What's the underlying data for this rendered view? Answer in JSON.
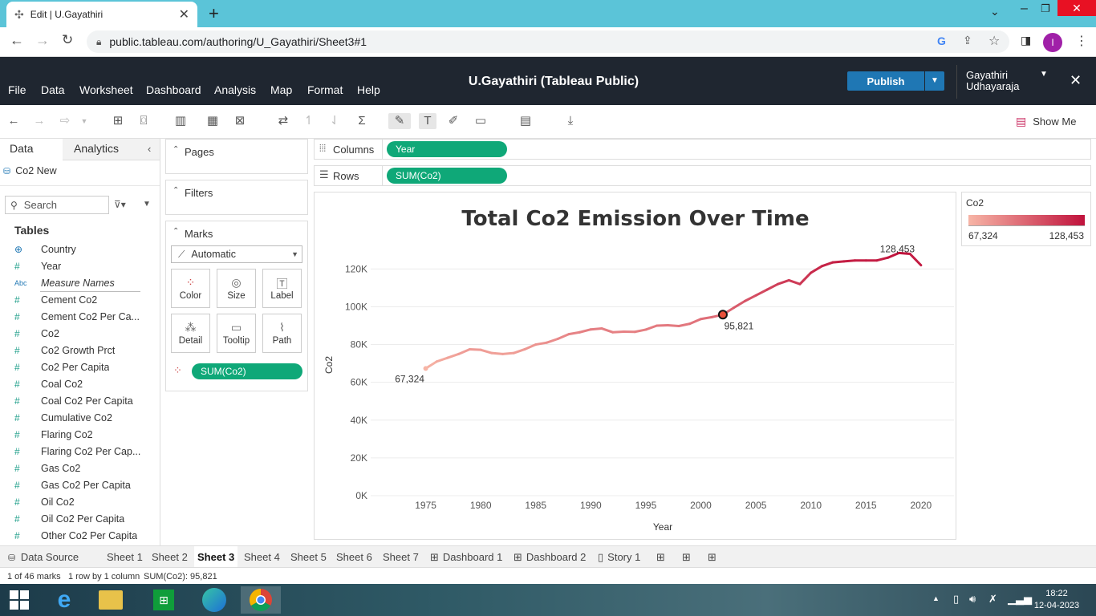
{
  "browser": {
    "tab_title": "Edit | U.Gayathiri",
    "url": "public.tableau.com/authoring/U_Gayathiri/Sheet3#1",
    "profile_initial": "I"
  },
  "app": {
    "menu": [
      "File",
      "Data",
      "Worksheet",
      "Dashboard",
      "Analysis",
      "Map",
      "Format",
      "Help"
    ],
    "workbook_title": "U.Gayathiri (Tableau Public)",
    "publish_label": "Publish",
    "user_name_line1": "Gayathiri",
    "user_name_line2": "Udhayaraja",
    "show_me_label": "Show Me"
  },
  "data_pane": {
    "tab_data": "Data",
    "tab_analytics": "Analytics",
    "datasource": "Co2 New",
    "search_placeholder": "Search",
    "tables_header": "Tables",
    "fields": [
      {
        "type": "geo",
        "name": "Country"
      },
      {
        "type": "measure",
        "name": "Year"
      },
      {
        "type": "text",
        "name": "Measure Names"
      },
      {
        "type": "measure",
        "name": "Cement Co2"
      },
      {
        "type": "measure",
        "name": "Cement Co2 Per Ca..."
      },
      {
        "type": "measure",
        "name": "Co2"
      },
      {
        "type": "measure",
        "name": "Co2 Growth Prct"
      },
      {
        "type": "measure",
        "name": "Co2 Per Capita"
      },
      {
        "type": "measure",
        "name": "Coal Co2"
      },
      {
        "type": "measure",
        "name": "Coal Co2 Per Capita"
      },
      {
        "type": "measure",
        "name": "Cumulative Co2"
      },
      {
        "type": "measure",
        "name": "Flaring Co2"
      },
      {
        "type": "measure",
        "name": "Flaring Co2 Per Cap..."
      },
      {
        "type": "measure",
        "name": "Gas Co2"
      },
      {
        "type": "measure",
        "name": "Gas Co2 Per Capita"
      },
      {
        "type": "measure",
        "name": "Oil Co2"
      },
      {
        "type": "measure",
        "name": "Oil Co2 Per Capita"
      },
      {
        "type": "measure",
        "name": "Other Co2 Per Capita"
      }
    ]
  },
  "shelves": {
    "pages_label": "Pages",
    "filters_label": "Filters",
    "marks_label": "Marks",
    "mark_type": "Automatic",
    "mark_buttons": [
      "Color",
      "Size",
      "Label",
      "Detail",
      "Tooltip",
      "Path"
    ],
    "color_pill": "SUM(Co2)",
    "columns_label": "Columns",
    "columns_pill": "Year",
    "rows_label": "Rows",
    "rows_pill": "SUM(Co2)"
  },
  "legend": {
    "title": "Co2",
    "min_label": "67,324",
    "max_label": "128,453",
    "color_low": "#f7b5a6",
    "color_high": "#c0123c"
  },
  "chart_data": {
    "type": "line",
    "title": "Total Co2 Emission Over Time",
    "xlabel": "Year",
    "ylabel": "Co2",
    "xlim": [
      1970,
      2023
    ],
    "ylim": [
      0,
      135000
    ],
    "x_ticks": [
      "1975",
      "1980",
      "1985",
      "1990",
      "1995",
      "2000",
      "2005",
      "2010",
      "2015",
      "2020"
    ],
    "y_ticks": [
      "0K",
      "20K",
      "40K",
      "60K",
      "80K",
      "100K",
      "120K"
    ],
    "grid": true,
    "x": [
      1975,
      1976,
      1977,
      1978,
      1979,
      1980,
      1981,
      1982,
      1983,
      1984,
      1985,
      1986,
      1987,
      1988,
      1989,
      1990,
      1991,
      1992,
      1993,
      1994,
      1995,
      1996,
      1997,
      1998,
      1999,
      2000,
      2001,
      2002,
      2003,
      2004,
      2005,
      2006,
      2007,
      2008,
      2009,
      2010,
      2011,
      2012,
      2013,
      2014,
      2015,
      2016,
      2017,
      2018,
      2019,
      2020
    ],
    "values": [
      67324,
      71000,
      73000,
      75000,
      77500,
      77200,
      75500,
      75000,
      75500,
      77500,
      80000,
      81000,
      83000,
      85500,
      86500,
      88000,
      88500,
      86500,
      86800,
      86700,
      87900,
      90000,
      90200,
      89800,
      91000,
      93500,
      94500,
      95821,
      99500,
      103000,
      106000,
      109000,
      112000,
      114000,
      112000,
      118000,
      121500,
      123500,
      124000,
      124500,
      124500,
      124500,
      126000,
      128453,
      128000,
      122000
    ],
    "annotations": [
      {
        "x": 1975,
        "label": "67,324"
      },
      {
        "x": 2002,
        "label": "95,821"
      },
      {
        "x": 2018,
        "label": "128,453"
      }
    ],
    "selected_x": 2002
  },
  "sheet_tabs": {
    "data_source": "Data Source",
    "tabs": [
      "Sheet 1",
      "Sheet 2",
      "Sheet 3",
      "Sheet 4",
      "Sheet 5",
      "Sheet 6",
      "Sheet 7",
      "Dashboard 1",
      "Dashboard 2",
      "Story 1"
    ],
    "active": "Sheet 3"
  },
  "status": {
    "marks": "1 of 46 marks",
    "dims": "1 row by 1 column",
    "sum": "SUM(Co2): 95,821"
  },
  "taskbar": {
    "time": "18:22",
    "date": "12-04-2023"
  }
}
